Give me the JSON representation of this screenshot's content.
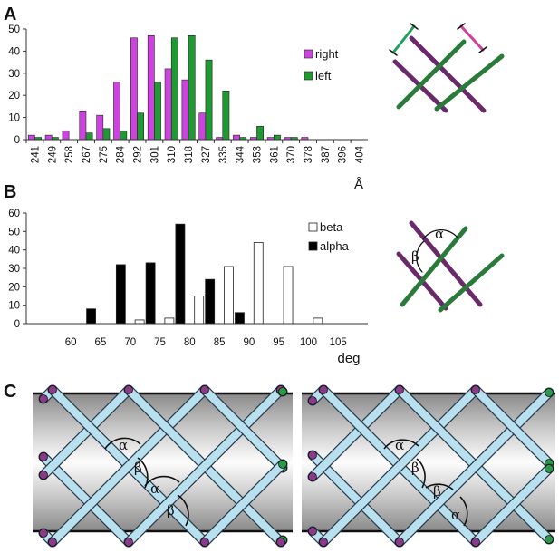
{
  "panels": {
    "a": "A",
    "b": "B",
    "c": "C"
  },
  "colors": {
    "right": "#cc44dd",
    "left": "#1f9a32",
    "beta": "#ffffff",
    "alpha": "#000000",
    "rod": "#b8e0ee",
    "purple_node": "#8a3a88",
    "green_node": "#2a9a48"
  },
  "chart_data": [
    {
      "type": "bar",
      "panel": "A",
      "xlabel": "Å",
      "ylim": [
        0,
        50
      ],
      "yticks": [
        0,
        10,
        20,
        30,
        40,
        50
      ],
      "xtick_labels": [
        "241",
        "249",
        "258",
        "267",
        "275",
        "284",
        "292",
        "301",
        "310",
        "318",
        "327",
        "335",
        "344",
        "353",
        "361",
        "370",
        "378",
        "387",
        "396",
        "404"
      ],
      "categories": [
        "241",
        "249",
        "258",
        "267",
        "275",
        "284",
        "292",
        "301",
        "310",
        "318",
        "327",
        "335",
        "344",
        "353",
        "361",
        "370",
        "378",
        "387",
        "396",
        "404"
      ],
      "series": [
        {
          "name": "right",
          "values": [
            2,
            2,
            4,
            13,
            11,
            26,
            46,
            47,
            32,
            27,
            12,
            1,
            2,
            1,
            1,
            1,
            1,
            0,
            0,
            0
          ]
        },
        {
          "name": "left",
          "values": [
            1,
            1,
            0,
            3,
            5,
            4,
            12,
            26,
            46,
            47,
            36,
            22,
            1,
            6,
            2,
            1,
            0,
            0,
            0,
            0
          ]
        }
      ],
      "legend": [
        "right",
        "left"
      ],
      "grid": false
    },
    {
      "type": "bar",
      "panel": "B",
      "xlabel": "deg",
      "ylim": [
        0,
        60
      ],
      "yticks": [
        0,
        10,
        20,
        30,
        40,
        50,
        60
      ],
      "xtick_labels": [
        "60",
        "65",
        "70",
        "75",
        "80",
        "85",
        "90",
        "95",
        "100",
        "105"
      ],
      "categories": [
        "57.5",
        "62.5",
        "67.5",
        "72.5",
        "77.5",
        "82.5",
        "87.5",
        "92.5",
        "97.5",
        "102.5"
      ],
      "series": [
        {
          "name": "beta",
          "values": [
            0,
            0,
            0,
            2,
            3,
            15,
            31,
            44,
            31,
            3
          ]
        },
        {
          "name": "alpha",
          "values": [
            0,
            8,
            32,
            33,
            54,
            24,
            6,
            0,
            0,
            0
          ]
        }
      ],
      "legend": [
        "beta",
        "alpha"
      ],
      "grid": false
    }
  ],
  "schematic": {
    "alpha": "α",
    "beta": "β"
  }
}
